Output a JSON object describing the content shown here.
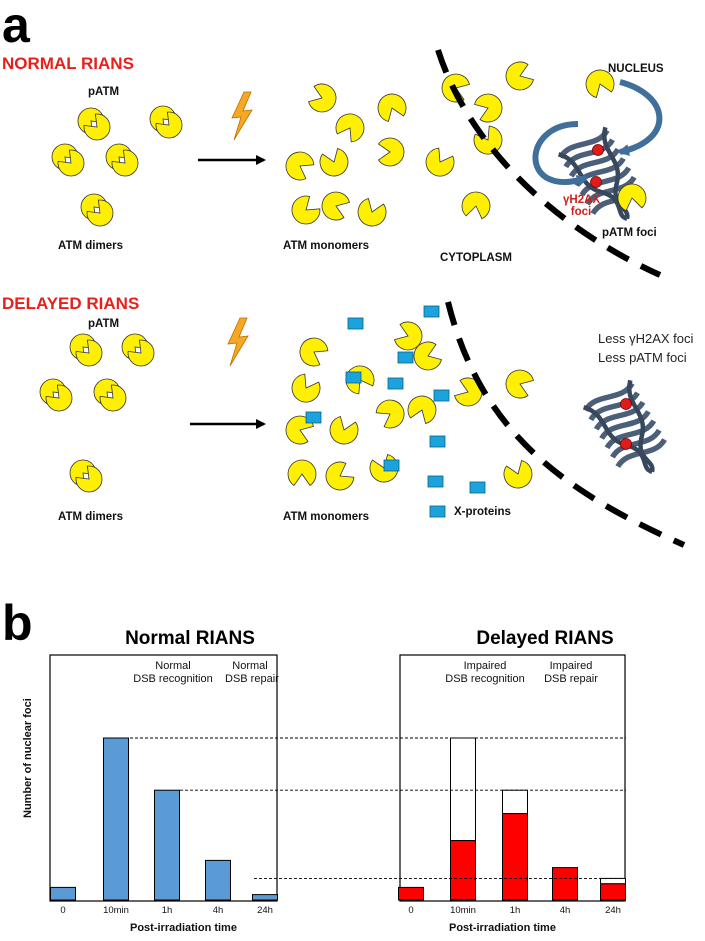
{
  "panel_a": {
    "letter": "a",
    "normal": {
      "heading": "NORMAL RIANS",
      "patm_label": "pATM",
      "dimers_label": "ATM dimers",
      "monomers_label": "ATM monomers",
      "cytoplasm_label": "CYTOPLASM",
      "nucleus_label": "NUCLEUS",
      "gh2ax_label_line1": "γH2AX",
      "gh2ax_label_line2": "foci",
      "patm_foci_label": "pATM foci"
    },
    "delayed": {
      "heading": "DELAYED RIANS",
      "patm_label": "pATM",
      "dimers_label": "ATM dimers",
      "monomers_label": "ATM monomers",
      "xproteins_label": "X-proteins",
      "note_line1": "Less γH2AX foci",
      "note_line2": "Less pATM foci"
    },
    "colors": {
      "atm": "#ffef00",
      "xprotein": "#1aa3dc",
      "heading": "#e8201c",
      "dna": "#4b5f78",
      "foci": "#e01b1b",
      "lightning": "#f7a823"
    }
  },
  "panel_b": {
    "letter": "b",
    "y_axis_label": "Number of nuclear foci",
    "x_axis_label": "Post-irradiation time",
    "charts": [
      {
        "title": "Normal RIANS",
        "annotation_left": [
          "Normal",
          "DSB recognition"
        ],
        "annotation_right": [
          "Normal",
          "DSB repair"
        ],
        "categories": [
          "0",
          "10min",
          "1h",
          "4h",
          "24h"
        ],
        "bars": [
          {
            "category": "0",
            "value": 7
          },
          {
            "category": "10min",
            "value": 90
          },
          {
            "category": "1h",
            "value": 61
          },
          {
            "category": "4h",
            "value": 22
          },
          {
            "category": "24h",
            "value": 3
          }
        ],
        "bar_color": "#5b9bd5"
      },
      {
        "title": "Delayed RIANS",
        "annotation_left": [
          "Impaired",
          "DSB recognition"
        ],
        "annotation_right": [
          "Impaired",
          "DSB repair"
        ],
        "categories": [
          "0",
          "10min",
          "1h",
          "4h",
          "24h"
        ],
        "bars": [
          {
            "category": "0",
            "filled": 7,
            "total": 7
          },
          {
            "category": "10min",
            "filled": 33,
            "total": 90
          },
          {
            "category": "1h",
            "filled": 48,
            "total": 61
          },
          {
            "category": "4h",
            "filled": 18,
            "total": 18
          },
          {
            "category": "24h",
            "filled": 9,
            "total": 12
          }
        ],
        "bar_color": "#ff0000"
      }
    ],
    "reference_lines": [
      90,
      61,
      12
    ],
    "y_range": [
      0,
      100
    ]
  }
}
